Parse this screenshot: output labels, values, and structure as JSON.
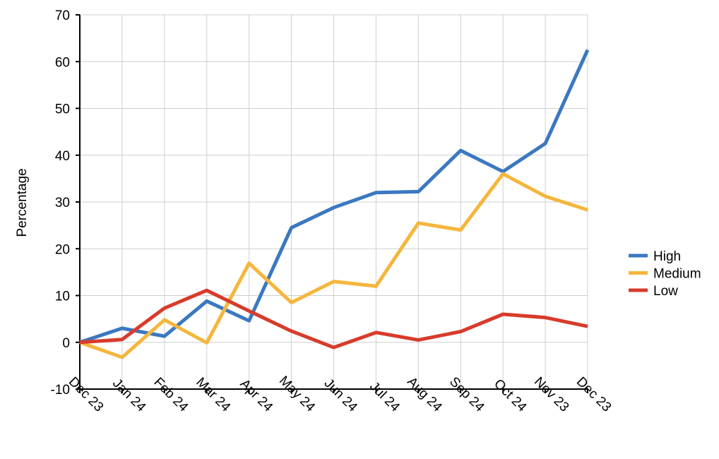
{
  "chart_data": {
    "type": "line",
    "categories": [
      "Dec 23",
      "Jan 24",
      "Feb 24",
      "Mar 24",
      "Apr 24",
      "May 24",
      "Jun 24",
      "Jul 24",
      "Aug 24",
      "Sep 24",
      "Oct 24",
      "Nov 23",
      "Dec 23"
    ],
    "series": [
      {
        "name": "High",
        "color": "#3b78c0",
        "values": [
          0,
          3,
          1.3,
          8.8,
          4.6,
          24.5,
          28.8,
          32,
          32.2,
          41,
          36.5,
          42.5,
          62.5
        ]
      },
      {
        "name": "Medium",
        "color": "#f5b63c",
        "values": [
          0,
          -3.2,
          4.8,
          -0.1,
          16.9,
          8.5,
          13,
          12,
          25.5,
          24,
          36,
          31.2,
          28.3
        ]
      },
      {
        "name": "Low",
        "color": "#d83b2b",
        "values": [
          0,
          0.6,
          7.3,
          11.1,
          6.7,
          2.4,
          -1.1,
          2.1,
          0.5,
          2.3,
          6,
          5.3,
          3.4
        ]
      }
    ],
    "title": "",
    "xlabel": "",
    "ylabel": "Percentage",
    "ylim": [
      -10,
      70
    ],
    "yticks": [
      "-10",
      "0",
      "10",
      "20",
      "30",
      "40",
      "50",
      "60",
      "70"
    ],
    "grid": true,
    "legend": "right"
  }
}
